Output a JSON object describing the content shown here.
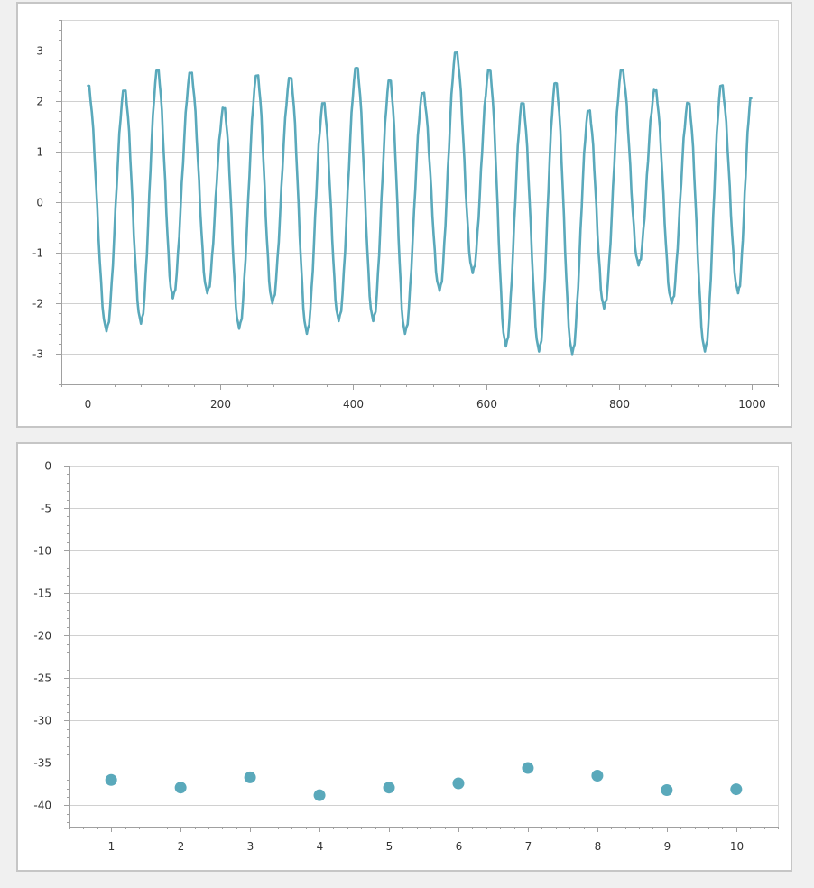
{
  "chart_data": [
    {
      "type": "line",
      "title": "",
      "xlabel": "",
      "ylabel": "",
      "xlim": [
        -40,
        1040
      ],
      "ylim": [
        -3.6,
        3.6
      ],
      "xticks": [
        0,
        200,
        400,
        600,
        800,
        1000
      ],
      "yticks": [
        -3,
        -2,
        -1,
        0,
        1,
        2,
        3
      ],
      "grid": true,
      "legend": "none",
      "color": "#5aa9bb",
      "series": [
        {
          "x": [
            0,
            28,
            55,
            80,
            105,
            128,
            155,
            180,
            205,
            228,
            255,
            278,
            305,
            330,
            355,
            378,
            405,
            430,
            455,
            478,
            505,
            530,
            555,
            580,
            605,
            630,
            655,
            680,
            705,
            730,
            755,
            778,
            805,
            830,
            855,
            880,
            905,
            930,
            955,
            980,
            1000
          ],
          "values": [
            2.3,
            -2.55,
            2.2,
            -2.4,
            2.6,
            -1.9,
            2.55,
            -1.8,
            1.85,
            -2.5,
            2.5,
            -2.0,
            2.45,
            -2.6,
            1.95,
            -2.35,
            2.65,
            -2.35,
            2.4,
            -2.6,
            2.15,
            -1.75,
            2.95,
            -1.4,
            2.6,
            -2.85,
            1.95,
            -2.95,
            2.35,
            -3.0,
            1.8,
            -2.1,
            2.6,
            -1.25,
            2.2,
            -2.0,
            1.95,
            -2.95,
            2.3,
            -1.8,
            2.05
          ]
        }
      ]
    },
    {
      "type": "scatter",
      "title": "",
      "xlabel": "",
      "ylabel": "",
      "xlim": [
        0.4,
        10.6
      ],
      "ylim": [
        -42.5,
        0
      ],
      "xticks": [
        1,
        2,
        3,
        4,
        5,
        6,
        7,
        8,
        9,
        10
      ],
      "yticks": [
        0,
        -5,
        -10,
        -15,
        -20,
        -25,
        -30,
        -35,
        -40
      ],
      "grid": true,
      "legend": "none",
      "color": "#5aa9bb",
      "series": [
        {
          "x": [
            1,
            2,
            3,
            4,
            5,
            6,
            7,
            8,
            9,
            10
          ],
          "values": [
            -37.0,
            -37.9,
            -36.7,
            -38.8,
            -37.9,
            -37.4,
            -35.6,
            -36.5,
            -38.2,
            -38.1
          ]
        }
      ]
    }
  ]
}
